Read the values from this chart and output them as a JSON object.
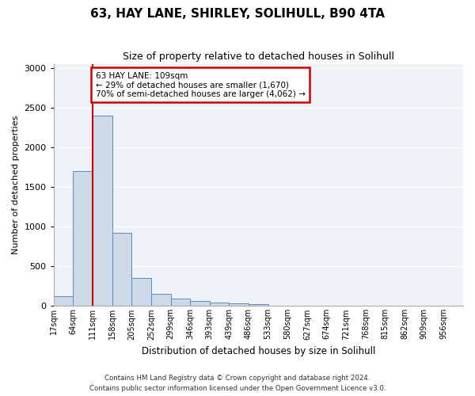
{
  "title": "63, HAY LANE, SHIRLEY, SOLIHULL, B90 4TA",
  "subtitle": "Size of property relative to detached houses in Solihull",
  "xlabel": "Distribution of detached houses by size in Solihull",
  "ylabel": "Number of detached properties",
  "bar_color": "#ccd9e8",
  "bar_edge_color": "#5b8db8",
  "background_color": "#eef2f8",
  "grid_color": "#ffffff",
  "annotation_box_color": "#cc0000",
  "annotation_line_color": "#cc0000",
  "property_bar_index": 2,
  "annotation_text_line1": "63 HAY LANE: 109sqm",
  "annotation_text_line2": "← 29% of detached houses are smaller (1,670)",
  "annotation_text_line3": "70% of semi-detached houses are larger (4,062) →",
  "categories": [
    "17sqm",
    "64sqm",
    "111sqm",
    "158sqm",
    "205sqm",
    "252sqm",
    "299sqm",
    "346sqm",
    "393sqm",
    "439sqm",
    "486sqm",
    "533sqm",
    "580sqm",
    "627sqm",
    "674sqm",
    "721sqm",
    "768sqm",
    "815sqm",
    "862sqm",
    "909sqm",
    "956sqm"
  ],
  "values": [
    120,
    1700,
    2400,
    920,
    355,
    155,
    90,
    60,
    40,
    35,
    20,
    5,
    5,
    5,
    0,
    0,
    0,
    0,
    0,
    0,
    0
  ],
  "ylim": [
    0,
    3050
  ],
  "yticks": [
    0,
    500,
    1000,
    1500,
    2000,
    2500,
    3000
  ],
  "footnote_line1": "Contains HM Land Registry data © Crown copyright and database right 2024.",
  "footnote_line2": "Contains public sector information licensed under the Open Government Licence v3.0."
}
